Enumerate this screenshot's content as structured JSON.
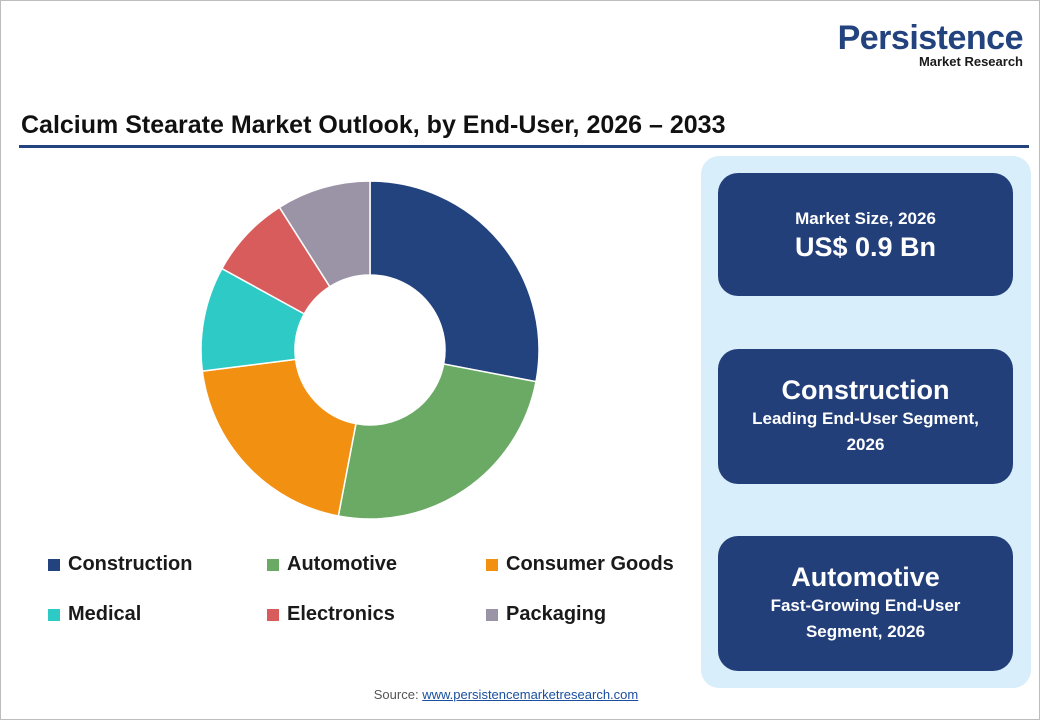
{
  "logo": {
    "name": "Persistence",
    "tagline": "Market Research"
  },
  "chart_data": {
    "type": "donut",
    "title": "Calcium Stearate Market Outlook, by End-User, 2026 – 2033",
    "categories": [
      "Construction",
      "Automotive",
      "Consumer Goods",
      "Medical",
      "Electronics",
      "Packaging"
    ],
    "values": [
      28,
      25,
      20,
      10,
      8,
      9
    ],
    "colors": [
      "#23437f",
      "#6aaa64",
      "#f29111",
      "#2ecac6",
      "#d95c5c",
      "#9b93a6"
    ]
  },
  "cards": [
    {
      "label": "Market Size, 2026",
      "value": "US$ 0.9 Bn"
    },
    {
      "value": "Construction",
      "label": "Leading End-User  Segment, 2026"
    },
    {
      "value": "Automotive",
      "label": "Fast-Growing End-User Segment, 2026"
    }
  ],
  "source": {
    "prefix": "Source:",
    "link": "www.persistencemarketresearch.com"
  }
}
